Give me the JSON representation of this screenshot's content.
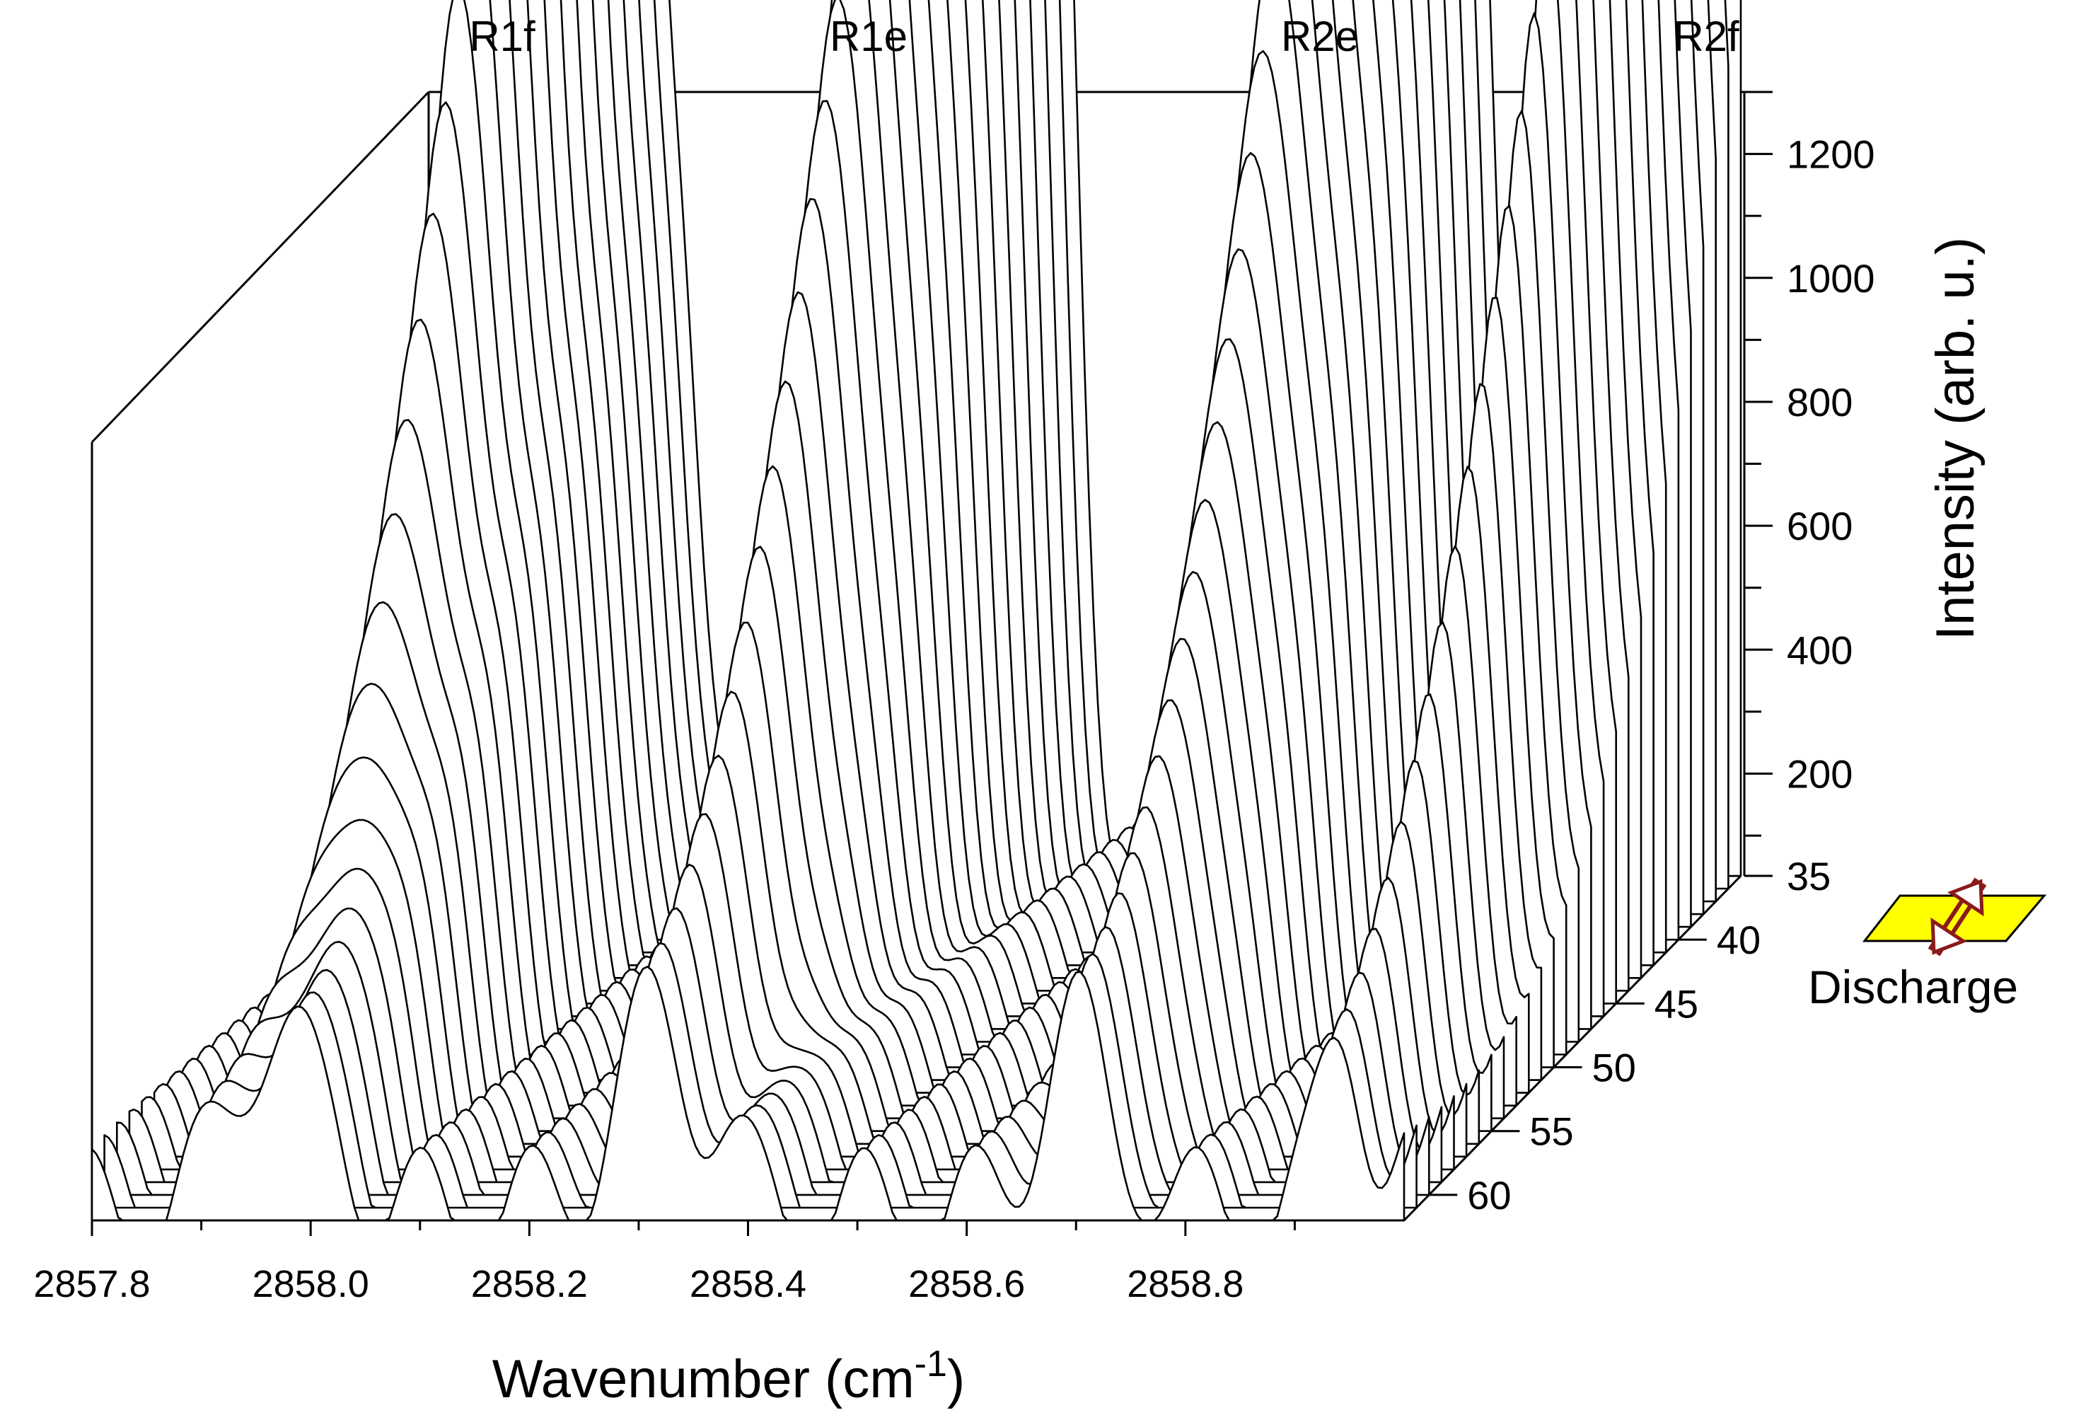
{
  "chart_data": {
    "type": "line",
    "style": "3d-waterfall",
    "title": "",
    "xlabel": "Wavenumber (cm",
    "xlabel_superscript": "-1",
    "xlabel_suffix": ")",
    "ylabel": "Intensity (arb. u.)",
    "zlabel": "",
    "xlim": [
      2857.8,
      2859.0
    ],
    "ylim": [
      35,
      1300
    ],
    "zlim": [
      35,
      62
    ],
    "x_ticks": [
      2857.8,
      2858.0,
      2858.2,
      2858.4,
      2858.6,
      2858.8
    ],
    "x_tick_labels": [
      "2857.8",
      "2858.0",
      "2858.2",
      "2858.4",
      "2858.6",
      "2858.8"
    ],
    "y_ticks": [
      35,
      200,
      400,
      600,
      800,
      1000,
      1200
    ],
    "y_tick_labels": [
      "35",
      "200",
      "400",
      "600",
      "800",
      "1000",
      "1200"
    ],
    "z_ticks": [
      40,
      45,
      50,
      55,
      60
    ],
    "z_tick_labels": [
      "40",
      "45",
      "50",
      "55",
      "60"
    ],
    "peak_labels": [
      {
        "text": "R1f",
        "x": 2857.97
      },
      {
        "text": "R1e",
        "x": 2858.32
      },
      {
        "text": "R2e",
        "x": 2858.7
      },
      {
        "text": "R2f",
        "x": 2858.95
      }
    ],
    "peaks": [
      {
        "label": "R1f",
        "x": 2857.97,
        "max_intensity": 1230
      },
      {
        "label": "R1e",
        "x": 2858.32,
        "max_intensity": 1290
      },
      {
        "label": "R2e",
        "x": 2858.7,
        "max_intensity": 1190
      },
      {
        "label": "R2f",
        "x": 2858.95,
        "max_intensity": 1080
      }
    ],
    "n_traces": 28,
    "grid": false
  },
  "annotation": {
    "text": "Discharge",
    "plate_color": "#ffff00",
    "arrow_color": "#8b1a1a"
  }
}
